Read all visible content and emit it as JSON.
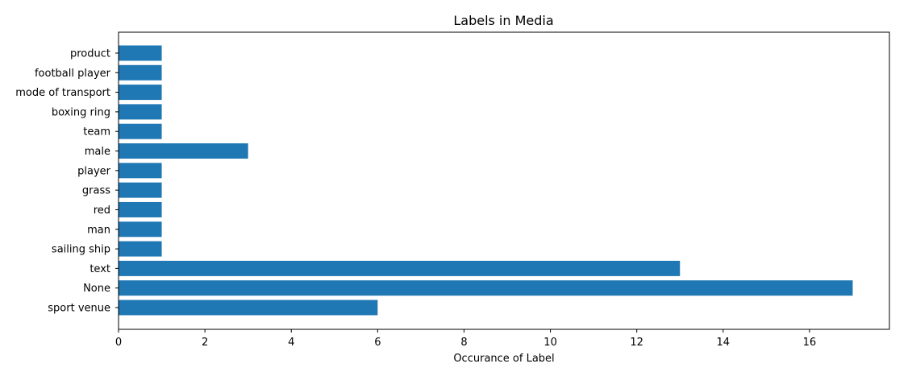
{
  "chart_data": {
    "type": "bar",
    "orientation": "horizontal",
    "title": "Labels in Media",
    "xlabel": "Occurance of Label",
    "ylabel": "",
    "xlim": [
      0,
      17.85
    ],
    "xticks": [
      0,
      2,
      4,
      6,
      8,
      10,
      12,
      14,
      16
    ],
    "grid": false,
    "bar_color": "#1f77b4",
    "categories": [
      "sport venue",
      "None",
      "text",
      "sailing ship",
      "man",
      "red",
      "grass",
      "player",
      "male",
      "team",
      "boxing ring",
      "mode of transport",
      "football player",
      "product"
    ],
    "values": [
      6,
      17,
      13,
      1,
      1,
      1,
      1,
      1,
      3,
      1,
      1,
      1,
      1,
      1
    ]
  }
}
